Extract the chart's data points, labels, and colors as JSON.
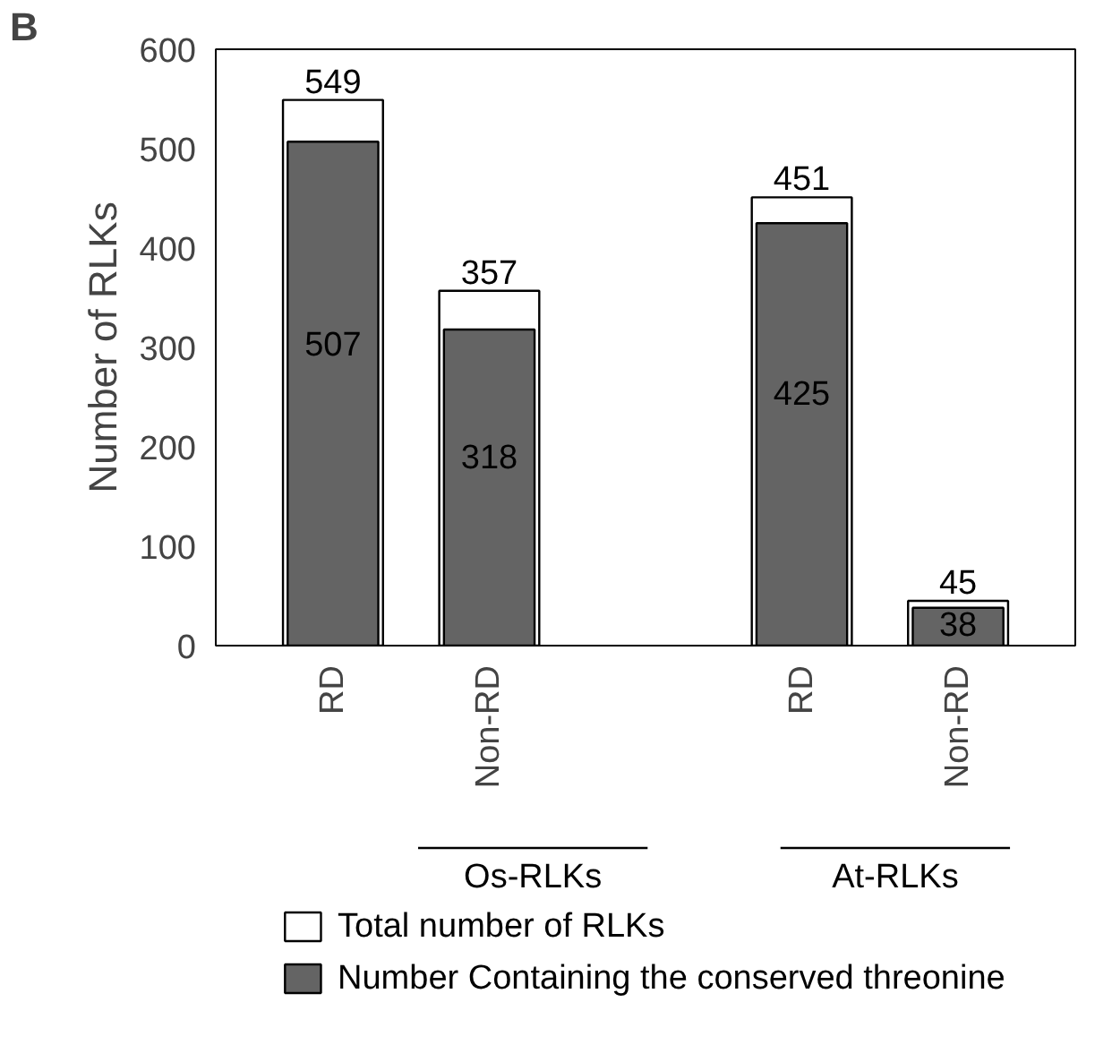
{
  "chart_data": {
    "type": "bar",
    "ylabel": "Number of RLKs",
    "categories": [
      "RD",
      "Non-RD",
      null,
      "RD",
      "Non-RD"
    ],
    "series": [
      {
        "name": "Total number of RLKs",
        "color": "#ffffff",
        "values": [
          549,
          357,
          null,
          451,
          45
        ]
      },
      {
        "name": "Number Containing the conserved threonine",
        "color": "#646464",
        "values": [
          507,
          318,
          null,
          425,
          38
        ]
      }
    ],
    "ylim": [
      0,
      600
    ],
    "yticks": [
      0,
      100,
      200,
      300,
      400,
      500,
      600
    ],
    "grid": false,
    "legend": "bottom",
    "data_labels": true,
    "annotations": [
      "B",
      "Os-RLKs",
      "At-RLKs"
    ]
  }
}
